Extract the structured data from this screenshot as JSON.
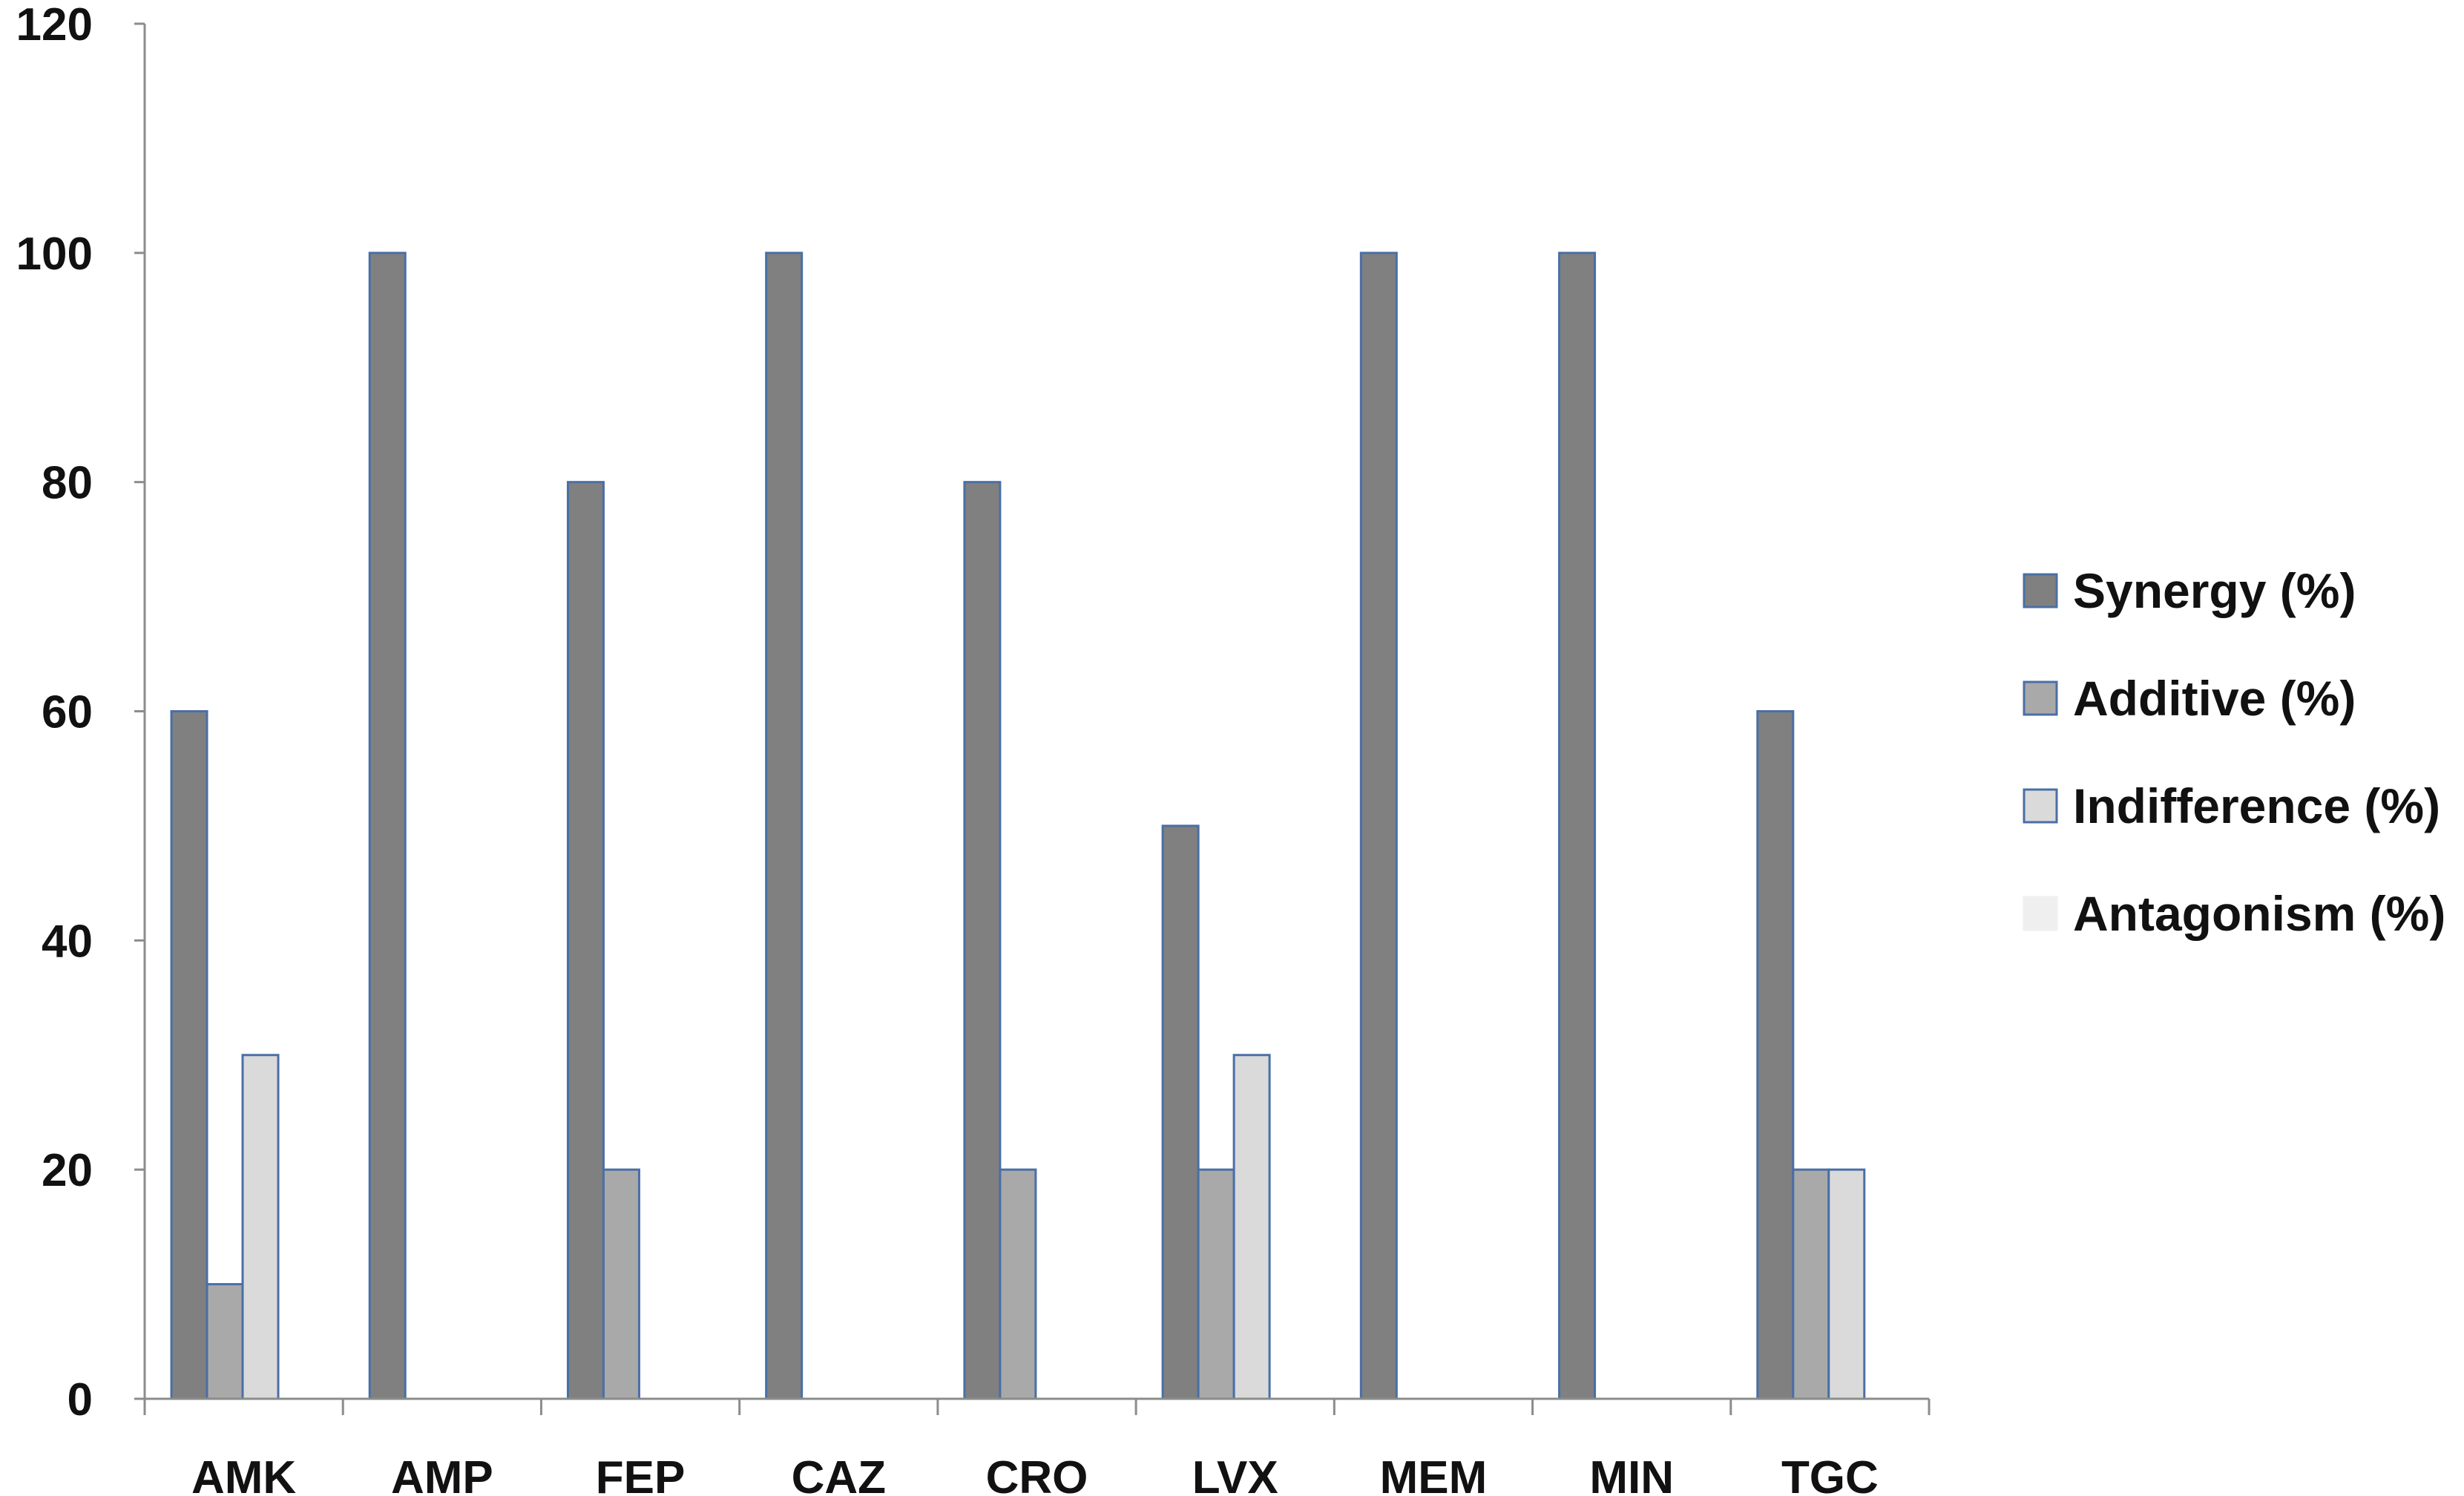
{
  "chart_data": {
    "type": "bar",
    "title": "",
    "xlabel": "",
    "ylabel": "",
    "ylim": [
      0,
      120
    ],
    "yticks": [
      0,
      20,
      40,
      60,
      80,
      100,
      120
    ],
    "grid": false,
    "legend_position": "right",
    "categories": [
      "AMK",
      "AMP",
      "FEP",
      "CAZ",
      "CRO",
      "LVX",
      "MEM",
      "MIN",
      "TGC"
    ],
    "series": [
      {
        "name": "Synergy (%)",
        "values": [
          60,
          100,
          80,
          100,
          80,
          50,
          100,
          100,
          60
        ],
        "fill": "#808080",
        "stroke": "#4a6fa5"
      },
      {
        "name": "Additive (%)",
        "values": [
          10,
          0,
          20,
          0,
          20,
          20,
          0,
          0,
          20
        ],
        "fill": "#a9a9a9",
        "stroke": "#4a6fa5"
      },
      {
        "name": "Indifference (%)",
        "values": [
          30,
          0,
          0,
          0,
          0,
          30,
          0,
          0,
          20
        ],
        "fill": "#dadada",
        "stroke": "#4a6fa5"
      },
      {
        "name": "Antagonism (%)",
        "values": [
          0,
          0,
          0,
          0,
          0,
          0,
          0,
          0,
          0
        ],
        "fill": "#efefef",
        "stroke": "#efefef"
      }
    ]
  }
}
